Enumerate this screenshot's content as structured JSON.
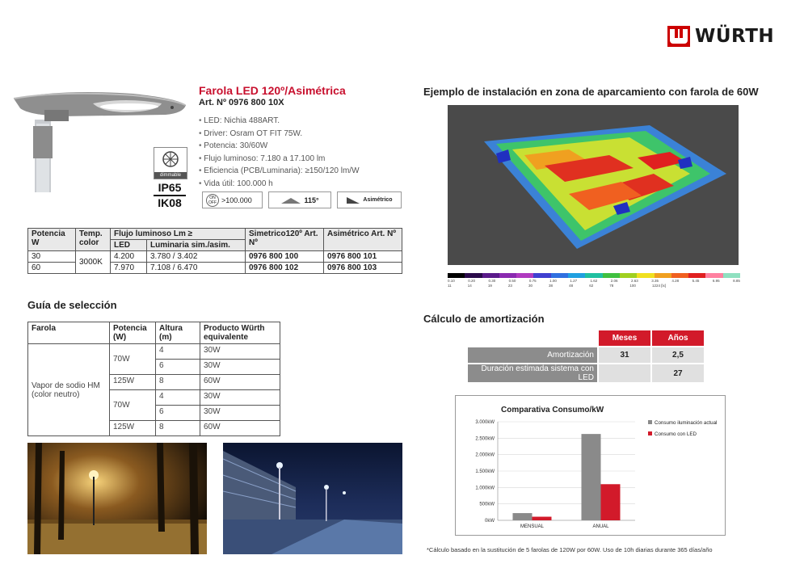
{
  "brand": {
    "name": "WÜRTH",
    "color": "#cc0000"
  },
  "product": {
    "title": "Farola LED 120º/Asimétrica",
    "art": "Art. Nº 0976 800 10X",
    "specs": [
      "LED: Nichia 488ART.",
      "Driver: Osram OT FIT 75W.",
      "Potencia: 30/60W",
      "Flujo luminoso: 7.180 a 17.100 lm",
      "Eficiencia (PCB/Luminaria): ≥150/120 lm/W",
      "Vida útil: 100.000 h"
    ],
    "dimmable": "dimmable",
    "ip": "IP65",
    "ik": "IK08",
    "hours": ">100.000",
    "onoff": "ON OFF",
    "angle": "115°",
    "asym": "Asimétrico"
  },
  "table1": {
    "headers": {
      "potencia": "Potencia W",
      "temp": "Temp. color",
      "flujo": "Flujo luminoso Lm ≥",
      "led": "LED",
      "luminaria": "Luminaria sim./asim.",
      "sim": "Simetrico120º Art. Nº",
      "asim": "Asimétrico Art. Nº"
    },
    "temp_value": "3000K",
    "rows": [
      {
        "w": "30",
        "led": "4.200",
        "lum": "3.780 / 3.402",
        "sim": "0976 800 100",
        "asim": "0976 800 101"
      },
      {
        "w": "60",
        "led": "7.970",
        "lum": "7.108 / 6.470",
        "sim": "0976 800 102",
        "asim": "0976 800 103"
      }
    ]
  },
  "guia": {
    "title": "Guía de selección",
    "headers": {
      "farola": "Farola",
      "potencia": "Potencia (W)",
      "altura": "Altura (m)",
      "producto": "Producto Würth equivalente"
    },
    "farola_value": "Vapor de sodio HM (color neutro)",
    "rows": [
      {
        "potencia": "70W",
        "altura": "4",
        "producto": "30W"
      },
      {
        "altura": "6",
        "producto": "30W"
      },
      {
        "potencia": "125W",
        "altura": "8",
        "producto": "60W"
      },
      {
        "potencia": "70W",
        "altura": "4",
        "producto": "30W"
      },
      {
        "altura": "6",
        "producto": "30W"
      },
      {
        "potencia": "125W",
        "altura": "8",
        "producto": "60W"
      }
    ]
  },
  "install": {
    "title": "Ejemplo de instalación en zona de aparcamiento con farola de 60W",
    "scale_top": [
      "0.10",
      "0.20",
      "0.30",
      "0.50",
      "0.75",
      "1.00",
      "1.27",
      "1.62",
      "2.06",
      "2.63",
      "3.35",
      "4.28",
      "5.45",
      "6.95",
      "8.85"
    ],
    "scale_bottom": [
      "11",
      "14",
      "19",
      "23",
      "30",
      "38",
      "48",
      "62",
      "78",
      "100",
      "1224 [lx]"
    ],
    "scale_colors": [
      "#000000",
      "#2a0a4a",
      "#5a1a8a",
      "#8a2ab0",
      "#b03ac0",
      "#4040d0",
      "#3070e0",
      "#20a0e0",
      "#20c0a0",
      "#40c040",
      "#a0d020",
      "#f0e020",
      "#f0a020",
      "#f06020",
      "#e02020",
      "#ff80a0",
      "#8fe0c0"
    ]
  },
  "calc": {
    "title": "Cálculo de amortización",
    "col_meses": "Meses",
    "col_anos": "Años",
    "rows": [
      {
        "label": "Amortización",
        "meses": "31",
        "anos": "2,5"
      },
      {
        "label": "Duración estimada sistema con LED",
        "meses": "",
        "anos": "27"
      }
    ]
  },
  "chart_data": {
    "type": "bar",
    "title": "Comparativa Consumo/kW",
    "categories": [
      "MENSUAL",
      "ANUAL"
    ],
    "series": [
      {
        "name": "Consumo iluminación actual",
        "values": [
          220,
          2628
        ],
        "color": "#8a8a8a"
      },
      {
        "name": "Consumo con LED",
        "values": [
          110,
          1100
        ],
        "color": "#d21a2a"
      }
    ],
    "yticks": [
      "0kW",
      "500kW",
      "1.000kW",
      "1.500kW",
      "2.000kW",
      "2.500kW",
      "3.000kW"
    ],
    "ylim": [
      0,
      3000
    ],
    "legend": "right"
  },
  "footnote": "*Cálculo basado en la sustitución de 5 farolas de 120W por 60W. Uso de 10h diarias durante 365 días/año"
}
